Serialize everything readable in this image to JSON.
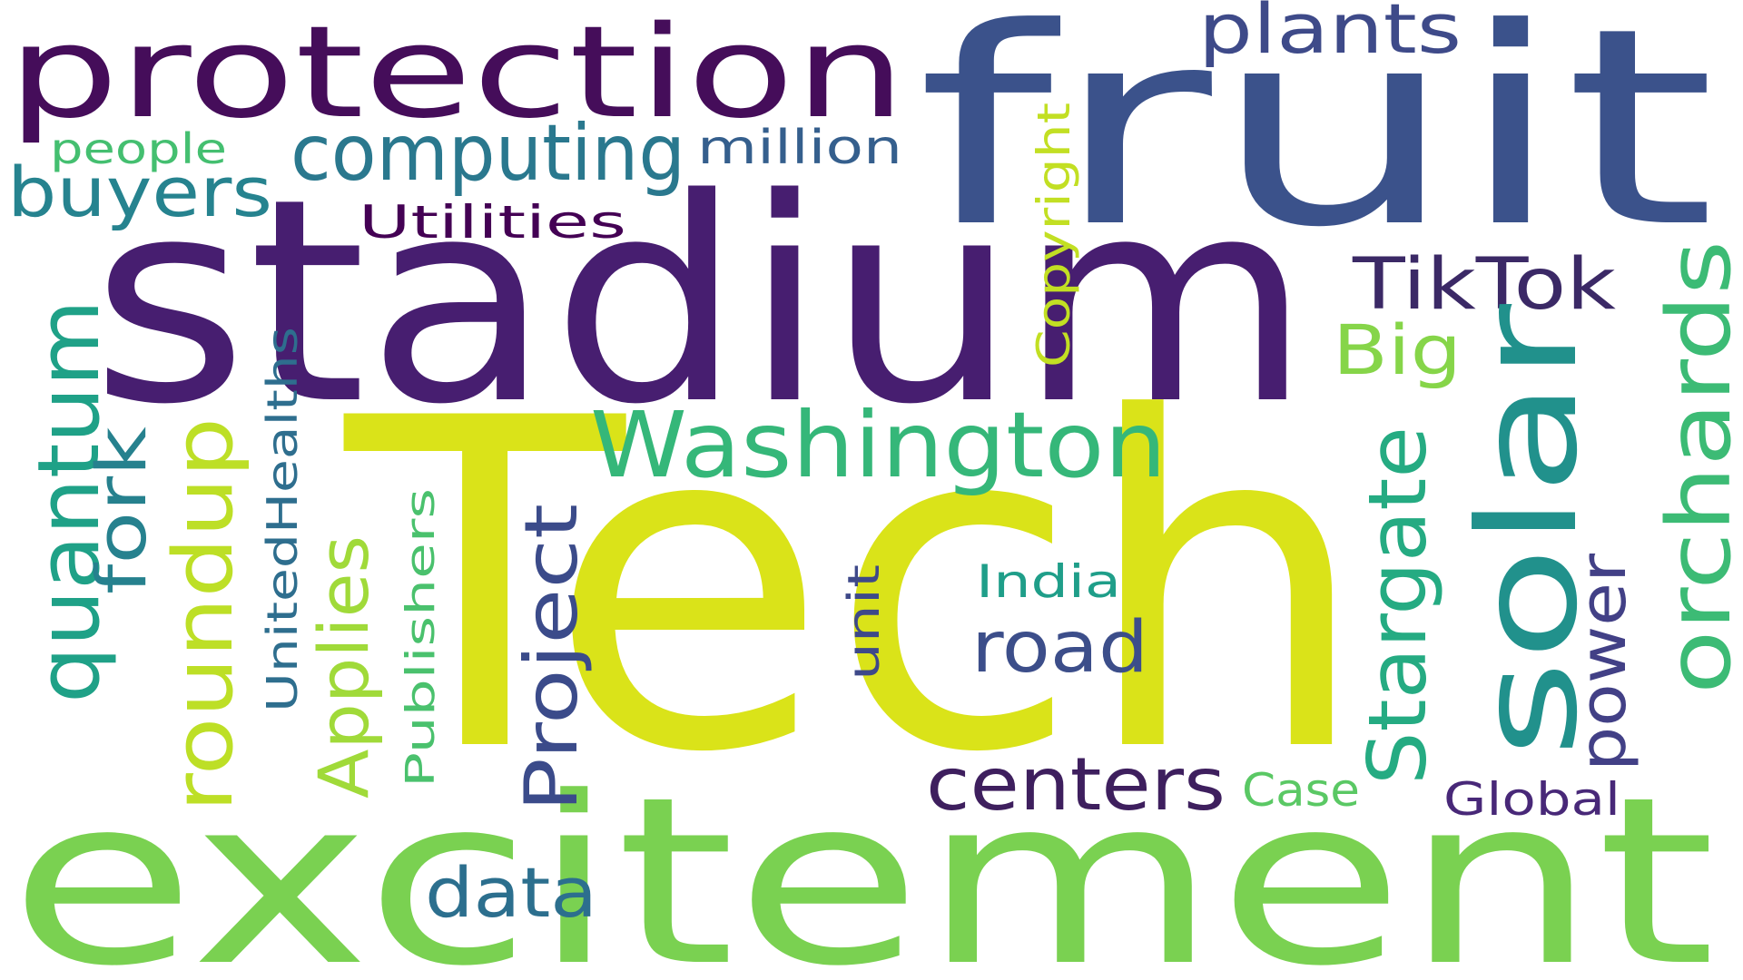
{
  "words": [
    {
      "text": "Tech",
      "color": "#dae319"
    },
    {
      "text": "excitement",
      "color": "#7ad151"
    },
    {
      "text": "stadium",
      "color": "#471e70"
    },
    {
      "text": "fruit",
      "color": "#3b528b"
    },
    {
      "text": "protection",
      "color": "#450d5a"
    },
    {
      "text": "solar",
      "color": "#21918c"
    },
    {
      "text": "Washington",
      "color": "#35b779"
    },
    {
      "text": "orchards",
      "color": "#3cbb75"
    },
    {
      "text": "quantum",
      "color": "#1fa187"
    },
    {
      "text": "roundup",
      "color": "#bddf26"
    },
    {
      "text": "computing",
      "color": "#2a788e"
    },
    {
      "text": "Stargate",
      "color": "#25ab82"
    },
    {
      "text": "buyers",
      "color": "#26838f"
    },
    {
      "text": "plants",
      "color": "#3e4a89"
    },
    {
      "text": "centers",
      "color": "#3e1f5e"
    },
    {
      "text": "Project",
      "color": "#3b4b8a"
    },
    {
      "text": "TikTok",
      "color": "#3b2966"
    },
    {
      "text": "fork",
      "color": "#26818e"
    },
    {
      "text": "road",
      "color": "#3c4e8a"
    },
    {
      "text": "Applies",
      "color": "#a0da39"
    },
    {
      "text": "data",
      "color": "#2c6f8e"
    },
    {
      "text": "power",
      "color": "#424086"
    },
    {
      "text": "Big",
      "color": "#86d549"
    },
    {
      "text": "million",
      "color": "#355f8d"
    },
    {
      "text": "Copyright",
      "color": "#c2df23"
    },
    {
      "text": "UnitedHealths",
      "color": "#2e6e8e"
    },
    {
      "text": "Publishers",
      "color": "#4ac16d"
    },
    {
      "text": "Utilities",
      "color": "#440154"
    },
    {
      "text": "India",
      "color": "#1f9e89"
    },
    {
      "text": "people",
      "color": "#44bf70"
    },
    {
      "text": "unit",
      "color": "#3e4989"
    },
    {
      "text": "Case",
      "color": "#5ac864"
    },
    {
      "text": "Global",
      "color": "#482878"
    }
  ]
}
